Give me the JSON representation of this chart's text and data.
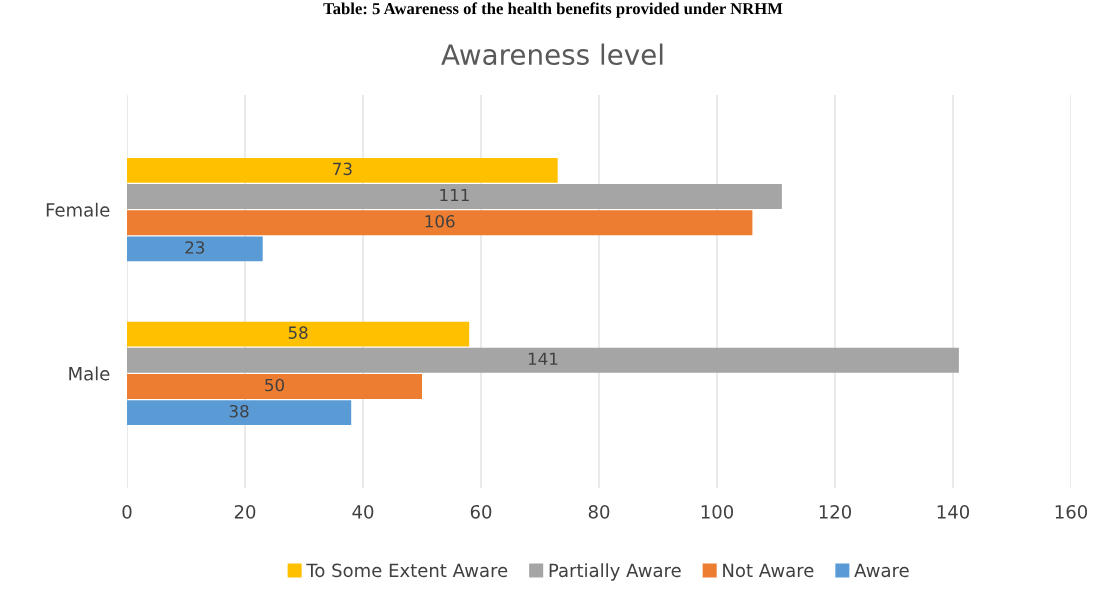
{
  "chart_data": {
    "type": "bar",
    "orientation": "horizontal",
    "title": "Awareness level",
    "annotations": [
      "Table: 5 Awareness of the health benefits provided under NRHM"
    ],
    "categories": [
      "Female",
      "Male"
    ],
    "series": [
      {
        "name": "To Some Extent Aware",
        "color": "#ffc000",
        "values": [
          73,
          58
        ]
      },
      {
        "name": "Partially Aware",
        "color": "#a5a5a5",
        "values": [
          111,
          141
        ]
      },
      {
        "name": "Not Aware",
        "color": "#ed7d31",
        "values": [
          106,
          50
        ]
      },
      {
        "name": "Aware",
        "color": "#5b9bd5",
        "values": [
          23,
          38
        ]
      }
    ],
    "xlim": [
      0,
      160
    ],
    "xticks": [
      0,
      20,
      40,
      60,
      80,
      100,
      120,
      140,
      160
    ],
    "grid": "x",
    "legend": "bottom",
    "data_labels": true
  }
}
